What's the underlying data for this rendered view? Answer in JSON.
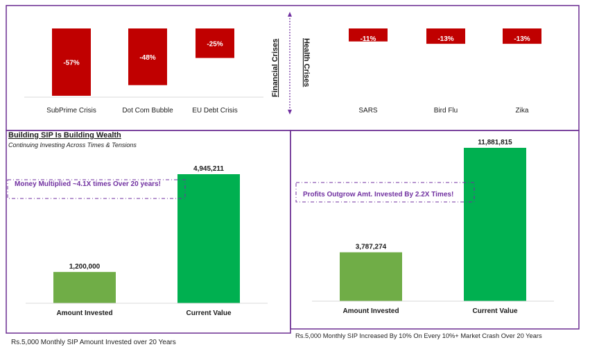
{
  "colors": {
    "frame": "#6a2c91",
    "crisis_bar": "#c00000",
    "invested_bar": "#70ad47",
    "value_bar": "#00b050",
    "annotation": "#7030a0"
  },
  "crisis_section": {
    "financial_label": "Financial Crises",
    "health_label": "Health Crises"
  },
  "chart_data": [
    {
      "type": "bar",
      "categories": [
        "SubPrime Crisis",
        "Dot Com Bubble",
        "EU Debt Crisis",
        "SARS",
        "Bird Flu",
        "Zika"
      ],
      "values": [
        -57,
        -48,
        -25,
        -11,
        -13,
        -13
      ],
      "labels": [
        "-57%",
        "-48%",
        "-25%",
        "-11%",
        "-13%",
        "-13%"
      ],
      "ylim": [
        -60,
        0
      ]
    },
    {
      "type": "bar",
      "title": "Building SIP Is Building Wealth",
      "subtitle": "Continuing Investing Across Times & Tensions",
      "annotation": "Money Multiplied ~4.1X times Over 20 years!",
      "categories": [
        "Amount Invested",
        "Current Value"
      ],
      "values": [
        1200000,
        4945211
      ],
      "labels": [
        "1,200,000",
        "4,945,211"
      ],
      "ylim": [
        0,
        5100000
      ],
      "footnote": "Rs.5,000 Monthly SIP Amount Invested over 20 Years"
    },
    {
      "type": "bar",
      "annotation": "Profits Outgrow Amt. Invested By 2.2X Times!",
      "categories": [
        "Amount Invested",
        "Current Value"
      ],
      "values": [
        3787274,
        11881815
      ],
      "labels": [
        "3,787,274",
        "11,881,815"
      ],
      "ylim": [
        0,
        12200000
      ],
      "footnote": "Rs.5,000 Monthly SIP Increased By 10% On Every 10%+ Market Crash Over 20 Years"
    }
  ]
}
